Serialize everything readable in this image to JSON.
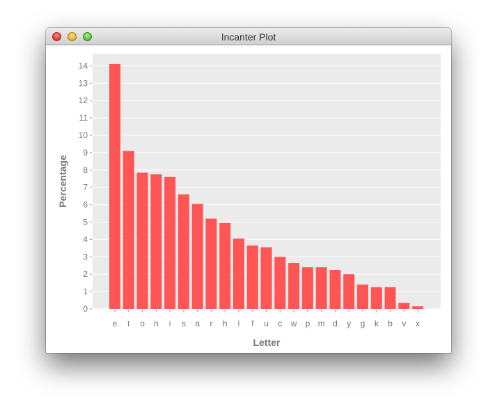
{
  "window": {
    "title": "Incanter Plot"
  },
  "colors": {
    "bar": "#ff5555",
    "plot_bg": "#ebebeb",
    "grid": "#ffffff",
    "text": "#777777"
  },
  "chart_data": {
    "type": "bar",
    "xlabel": "Letter",
    "ylabel": "Percentage",
    "categories": [
      "e",
      "t",
      "o",
      "n",
      "i",
      "s",
      "a",
      "r",
      "h",
      "l",
      "f",
      "u",
      "c",
      "w",
      "p",
      "m",
      "d",
      "y",
      "g",
      "k",
      "b",
      "v",
      "x"
    ],
    "values": [
      14.1,
      9.1,
      7.85,
      7.75,
      7.6,
      6.6,
      6.05,
      5.2,
      4.95,
      4.05,
      3.65,
      3.55,
      3.0,
      2.65,
      2.4,
      2.4,
      2.25,
      2.0,
      1.4,
      1.25,
      1.25,
      0.35,
      0.15
    ],
    "ylim": [
      0,
      14.7
    ],
    "yticks": [
      0,
      1,
      2,
      3,
      4,
      5,
      6,
      7,
      8,
      9,
      10,
      11,
      12,
      13,
      14
    ],
    "grid": true,
    "legend": "none"
  }
}
